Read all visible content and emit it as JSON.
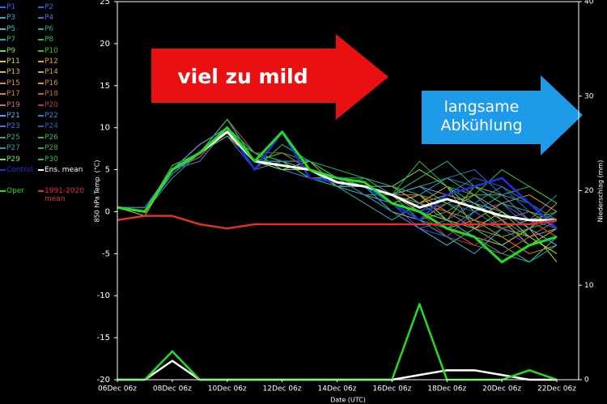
{
  "chart_data": {
    "type": "line",
    "categories": [
      "06Dec 06z",
      null,
      "08Dec 06z",
      null,
      "10Dec 06z",
      null,
      "12Dec 06z",
      null,
      "14Dec 06z",
      null,
      "16Dec 06z",
      null,
      "18Dec 06z",
      null,
      "20Dec 06z",
      null,
      "22Dec 06z"
    ],
    "ylabel": "850 hPa Temp. (°C)",
    "y2label": "Niederschlag (mm)",
    "xlabel": "Date (UTC)",
    "ylim": [
      -20,
      25
    ],
    "yticks": [
      -20,
      -15,
      -10,
      -5,
      0,
      5,
      10,
      15,
      20,
      25
    ],
    "y2lim": [
      0,
      40
    ],
    "y2ticks": [
      0,
      10,
      20,
      30,
      40
    ],
    "annotations": [
      "viel zu mild",
      "langsame Abkühlung"
    ],
    "series": [
      {
        "name": "P1",
        "color": "#3a5cff",
        "line_width": 1,
        "values": [
          0.5,
          0,
          4.5,
          7,
          9,
          7,
          6,
          5,
          4,
          2,
          1,
          -2,
          -3,
          0,
          1,
          -2,
          -4
        ]
      },
      {
        "name": "P2",
        "color": "#2a6ae0",
        "line_width": 1,
        "values": [
          0.5,
          0.5,
          5,
          6,
          10,
          6,
          5,
          4,
          3,
          3,
          2,
          0,
          2,
          4,
          3,
          0,
          -1
        ]
      },
      {
        "name": "P3",
        "color": "#2fa8d8",
        "line_width": 1,
        "values": [
          0.5,
          0,
          5,
          7,
          11,
          6,
          5,
          5,
          4,
          2,
          0,
          -1,
          -3,
          -5,
          -2,
          -3,
          -5
        ]
      },
      {
        "name": "P4",
        "color": "#3d7ad8",
        "line_width": 1,
        "values": [
          0.5,
          0,
          5,
          6.5,
          10,
          7,
          6,
          6,
          3,
          4,
          3,
          2,
          4,
          3,
          1,
          -1,
          2
        ]
      },
      {
        "name": "P5",
        "color": "#2cc4c4",
        "line_width": 1,
        "values": [
          0.5,
          -0.5,
          5,
          8,
          10,
          6,
          7,
          5,
          4,
          3,
          0,
          -2,
          -4,
          -2,
          -4,
          -6,
          -3
        ]
      },
      {
        "name": "P6",
        "color": "#1ea890",
        "line_width": 1,
        "values": [
          0.5,
          0,
          4,
          7,
          9,
          6,
          5,
          6,
          4,
          3,
          2,
          3,
          1,
          -1,
          -3,
          -2,
          0
        ]
      },
      {
        "name": "P7",
        "color": "#22b0a0",
        "line_width": 1,
        "values": [
          0.5,
          0,
          5,
          7,
          11,
          7,
          6,
          4,
          3,
          1,
          -1,
          1,
          3,
          2,
          -1,
          -3,
          -2
        ]
      },
      {
        "name": "P8",
        "color": "#1fbf60",
        "line_width": 1,
        "values": [
          0.5,
          0.5,
          5,
          7,
          10,
          5,
          8,
          6,
          5,
          4,
          2,
          3,
          4,
          2,
          2,
          3,
          1
        ]
      },
      {
        "name": "P9",
        "color": "#7ad650",
        "line_width": 1,
        "values": [
          0.5,
          0,
          5.5,
          7,
          9,
          6,
          7,
          5,
          4,
          3,
          3,
          5,
          3,
          0,
          -2,
          -1,
          -3
        ]
      },
      {
        "name": "P10",
        "color": "#30c030",
        "line_width": 1,
        "values": [
          0.5,
          0,
          5,
          7,
          10,
          6,
          6,
          4,
          3,
          2,
          2,
          -1,
          0,
          2,
          5,
          3,
          1
        ]
      },
      {
        "name": "P11",
        "color": "#d8d020",
        "line_width": 1,
        "values": [
          0.5,
          0,
          5,
          6,
          10,
          7,
          5,
          6,
          4,
          3,
          1,
          2,
          -1,
          -3,
          -4,
          -2,
          -6
        ]
      },
      {
        "name": "P12",
        "color": "#e0a020",
        "line_width": 1,
        "values": [
          0.5,
          0,
          5,
          7,
          9,
          6,
          6,
          5,
          4,
          3,
          2,
          0,
          -2,
          -1,
          1,
          2,
          0
        ]
      },
      {
        "name": "P13",
        "color": "#d0c030",
        "line_width": 1,
        "values": [
          0.5,
          0,
          4.5,
          7,
          10,
          6,
          5,
          5,
          3,
          3,
          3,
          1,
          2,
          1,
          -1,
          -4,
          -2
        ]
      },
      {
        "name": "P14",
        "color": "#c8a830",
        "line_width": 1,
        "values": [
          0.5,
          -0.5,
          5,
          6,
          10,
          5,
          6,
          4,
          4,
          2,
          1,
          0,
          -1,
          3,
          2,
          -1,
          -3
        ]
      },
      {
        "name": "P15",
        "color": "#e09020",
        "line_width": 1,
        "values": [
          0.5,
          0,
          5,
          7,
          11,
          6,
          5,
          5,
          4,
          3,
          2,
          1,
          3,
          -2,
          -3,
          -5,
          -4
        ]
      },
      {
        "name": "P16",
        "color": "#d89030",
        "line_width": 1,
        "values": [
          0.5,
          0,
          5,
          7,
          9,
          7,
          6,
          6,
          3,
          2,
          0,
          -1,
          1,
          2,
          0,
          -2,
          1
        ]
      },
      {
        "name": "P17",
        "color": "#d88030",
        "line_width": 1,
        "values": [
          0.5,
          0,
          5,
          7,
          10,
          6,
          5,
          5,
          3,
          3,
          2,
          2,
          0,
          -1,
          -2,
          -3,
          -2
        ]
      },
      {
        "name": "P18",
        "color": "#c06040",
        "line_width": 1,
        "values": [
          0.5,
          0,
          5,
          6.5,
          10,
          6,
          6,
          4,
          4,
          2,
          1,
          -1,
          -2,
          -4,
          -5,
          -3,
          -1
        ]
      },
      {
        "name": "P19",
        "color": "#c07070",
        "line_width": 1,
        "values": [
          0.5,
          0,
          5,
          7,
          10,
          6,
          5,
          5,
          4,
          3,
          2,
          1,
          0,
          -2,
          -1,
          0,
          -2
        ]
      },
      {
        "name": "P20",
        "color": "#b04030",
        "line_width": 1,
        "values": [
          0.5,
          0,
          5,
          7,
          11,
          7,
          7,
          5,
          4,
          3,
          1,
          0,
          -3,
          -4,
          -2,
          -1,
          -3
        ]
      },
      {
        "name": "P21",
        "color": "#50a8e8",
        "line_width": 1,
        "values": [
          0.5,
          0,
          5,
          8,
          10,
          6,
          6,
          5,
          3,
          3,
          2,
          3,
          2,
          1,
          0,
          -2,
          -4
        ]
      },
      {
        "name": "P22",
        "color": "#3080d0",
        "line_width": 1,
        "values": [
          0.5,
          0,
          4.5,
          7,
          10,
          6,
          5,
          4,
          4,
          2,
          0,
          -2,
          -1,
          1,
          3,
          1,
          -1
        ]
      },
      {
        "name": "P23",
        "color": "#3a70e0",
        "line_width": 1,
        "values": [
          0.5,
          0.5,
          5,
          7,
          9,
          5,
          6,
          6,
          4,
          3,
          3,
          2,
          4,
          5,
          2,
          -1,
          -2
        ]
      },
      {
        "name": "P24",
        "color": "#2860b8",
        "line_width": 1,
        "values": [
          0.5,
          0,
          5,
          6,
          10,
          6,
          6,
          5,
          4,
          2,
          1,
          0,
          1,
          0,
          -2,
          -4,
          -3
        ]
      },
      {
        "name": "P25",
        "color": "#20a898",
        "line_width": 1,
        "values": [
          0.5,
          0,
          5,
          7,
          10,
          7,
          5,
          5,
          3,
          3,
          2,
          1,
          -1,
          -3,
          -5,
          -6,
          -4
        ]
      },
      {
        "name": "P26",
        "color": "#28b868",
        "line_width": 1,
        "values": [
          0.5,
          0,
          5,
          7,
          11,
          6,
          6,
          4,
          4,
          3,
          2,
          4,
          6,
          3,
          1,
          0,
          -1
        ]
      },
      {
        "name": "P27",
        "color": "#20a0a8",
        "line_width": 1,
        "values": [
          0.5,
          0,
          5,
          7,
          10,
          6,
          6,
          5,
          3,
          2,
          1,
          -1,
          -2,
          0,
          2,
          1,
          -2
        ]
      },
      {
        "name": "P28",
        "color": "#30b050",
        "line_width": 1,
        "values": [
          0.5,
          0,
          5.5,
          7,
          9,
          7,
          6,
          5,
          4,
          4,
          3,
          2,
          1,
          -1,
          -3,
          -2,
          -1
        ]
      },
      {
        "name": "P29",
        "color": "#80e040",
        "line_width": 1,
        "values": [
          0.5,
          0,
          5,
          7,
          10,
          6,
          5,
          5,
          4,
          3,
          1,
          0,
          -1,
          -2,
          0,
          -3,
          -5
        ]
      },
      {
        "name": "P30",
        "color": "#20c040",
        "line_width": 1,
        "values": [
          0.5,
          0,
          5,
          7,
          10,
          6,
          7,
          6,
          4,
          3,
          2,
          6,
          3,
          1,
          -2,
          -1,
          0
        ]
      },
      {
        "name": "Control",
        "color": "#2030e0",
        "line_width": 2.5,
        "values": [
          0.5,
          0,
          5,
          7,
          10,
          5,
          9.5,
          4,
          3.5,
          3,
          1,
          -1,
          2,
          3,
          4,
          1,
          -2
        ]
      },
      {
        "name": "Ens. mean",
        "color": "#ffffff",
        "line_width": 3,
        "values": [
          0.5,
          0,
          5,
          7,
          9.5,
          6,
          5.5,
          5,
          3.5,
          3,
          2,
          0.5,
          1.5,
          0.5,
          -0.5,
          -1,
          -1
        ]
      },
      {
        "name": "Oper",
        "color": "#22dd22",
        "line_width": 3,
        "values": [
          0.5,
          0,
          5,
          7,
          10,
          6,
          9.5,
          5,
          4,
          3.5,
          1,
          0,
          -2,
          -3,
          -6,
          -4,
          -3
        ]
      },
      {
        "name": "1991-2020 mean",
        "color": "#e03030",
        "line_width": 2.5,
        "values": [
          -1,
          -0.5,
          -0.5,
          -1.5,
          -2,
          -1.5,
          -1.5,
          -1.5,
          -1.5,
          -1.5,
          -1.5,
          -1.5,
          -1.5,
          -1.5,
          -1.5,
          -1.5,
          -1
        ]
      },
      {
        "color": "#ffffff",
        "line_width": 2.5,
        "axis": "y2",
        "values": [
          0,
          0,
          2,
          0,
          0,
          0,
          0,
          0,
          0,
          0,
          0,
          0.5,
          1,
          1,
          0.5,
          0,
          0
        ]
      },
      {
        "color": "#22dd22",
        "line_width": 2.5,
        "axis": "y2",
        "values": [
          0,
          0,
          3,
          0,
          0,
          0,
          0,
          0,
          0,
          0,
          0,
          8,
          0,
          0,
          0,
          1,
          0
        ]
      }
    ]
  }
}
